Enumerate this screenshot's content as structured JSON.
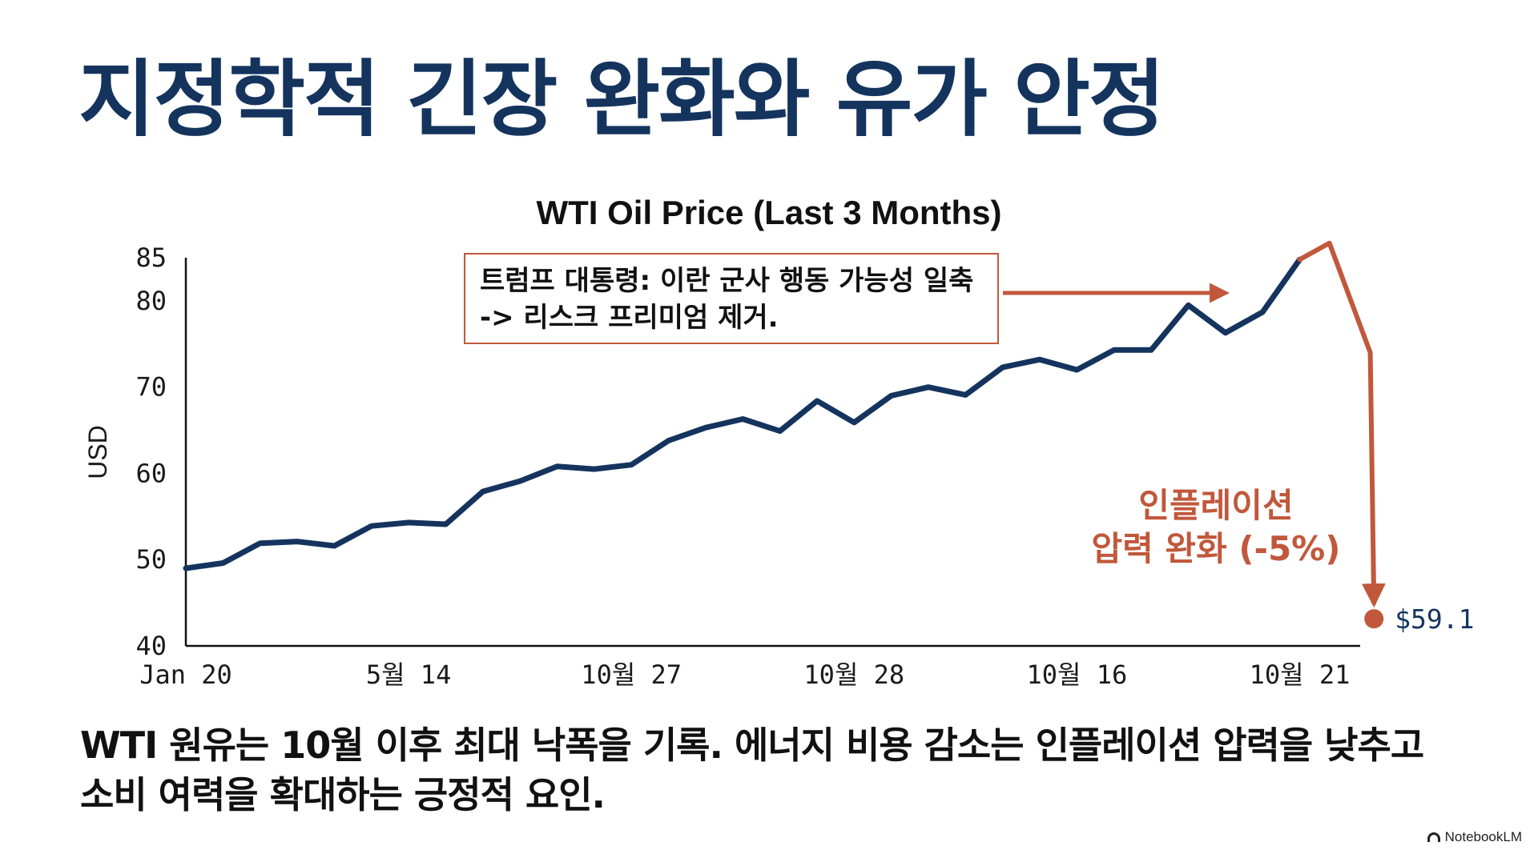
{
  "page": {
    "title": "지정학적 긴장 완화와 유가 안정",
    "summary_lines": [
      "WTI 원유는 10월 이후 최대 낙폭을 기록. 에너지 비용 감소는 인플레이션 압력을 낮추고",
      "소비 여력을 확대하는 긍정적 요인."
    ],
    "brand": "NotebookLM",
    "brand_icon": "notebooklm-logo-icon"
  },
  "callout": {
    "lines": [
      "트럼프 대통령: 이란 군사 행동 가능성 일축",
      "-> 리스크 프리미엄 제거."
    ]
  },
  "colors": {
    "title": "#14345e",
    "line": "#14345e",
    "accent": "#c1583b",
    "axis": "#111111"
  },
  "chart_data": {
    "type": "line",
    "title": "WTI Oil Price (Last 3 Months)",
    "ylabel": "USD",
    "xlabel": "",
    "ylim": [
      40,
      85
    ],
    "y_ticks": [
      40,
      50,
      60,
      70,
      80,
      85
    ],
    "x_tick_labels": [
      "Jan 20",
      "5월 14",
      "10월 27",
      "10월 28",
      "10월 16",
      "10월 21"
    ],
    "x_tick_index": [
      0,
      6,
      12,
      18,
      24,
      30
    ],
    "x_index_max": 32,
    "values": [
      49.0,
      49.6,
      51.9,
      52.1,
      51.6,
      53.9,
      54.3,
      54.1,
      57.9,
      59.1,
      60.8,
      60.5,
      61.0,
      63.8,
      65.3,
      66.3,
      64.9,
      68.4,
      65.9,
      69.0,
      70.0,
      69.1,
      72.3,
      73.2,
      72.0,
      74.3,
      74.3,
      79.5,
      76.3,
      78.7,
      84.8
    ],
    "drop": {
      "values": [
        86.7,
        74.0,
        45.0
      ],
      "x_index": [
        30.8,
        31.9,
        32.0
      ],
      "label_lines": [
        "인플레이션",
        "압력 완화 (-5%)"
      ]
    },
    "end_value_label": "$59.1",
    "grid": false,
    "legend": "none"
  }
}
